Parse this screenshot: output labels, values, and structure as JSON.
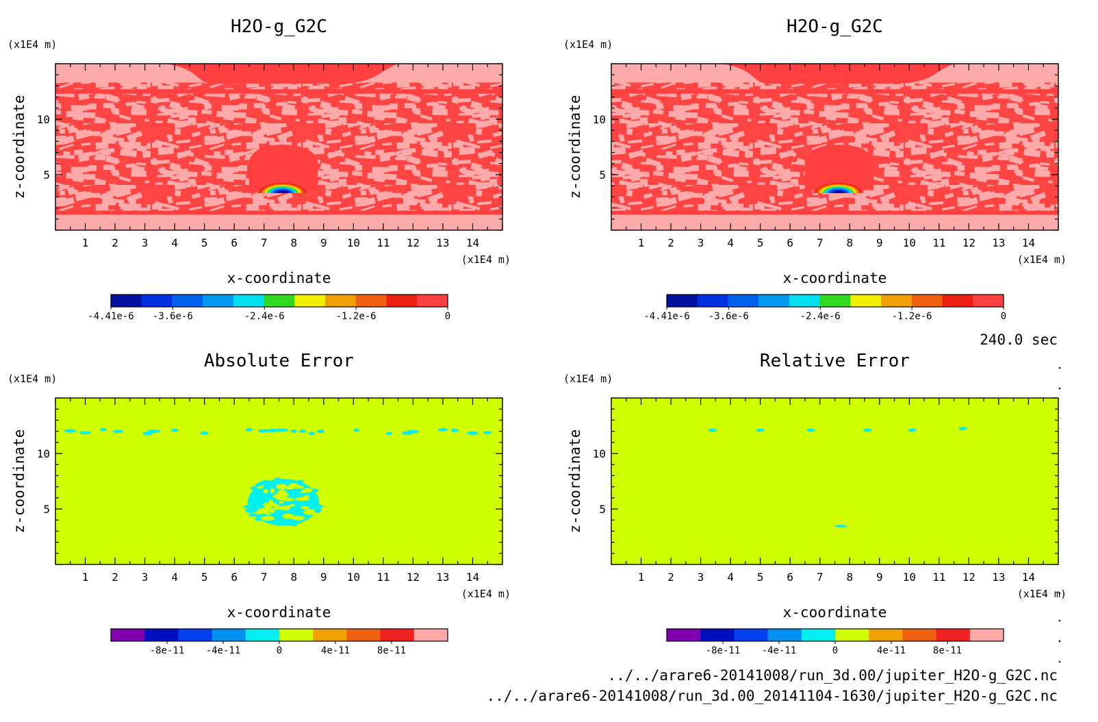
{
  "figure": {
    "time_label": "240.0 sec",
    "footer_lines": [
      "../../arare6-20141008/run_3d.00/jupiter_H2O-g_G2C.nc",
      "../../arare6-20141008/run_3d.00_20141104-1630/jupiter_H2O-g_G2C.nc"
    ]
  },
  "chart_data": [
    {
      "type": "heatmap",
      "title": "H2O-g_G2C",
      "xlabel": "x-coordinate",
      "ylabel": "z-coordinate",
      "x_unit": "(x1E4 m)",
      "y_unit": "(x1E4 m)",
      "xlim": [
        0,
        15
      ],
      "ylim": [
        0,
        15
      ],
      "xticks": [
        1,
        2,
        3,
        4,
        5,
        6,
        7,
        8,
        9,
        10,
        11,
        12,
        13,
        14
      ],
      "yticks": [
        5,
        10
      ],
      "colorbar": {
        "range": [
          -4.41e-06,
          0
        ],
        "colors": [
          "#0010a0",
          "#0030e0",
          "#0060f0",
          "#0098f0",
          "#00e0f0",
          "#30d820",
          "#f0f000",
          "#f0a000",
          "#f06010",
          "#f02010",
          "#ff4040"
        ],
        "tick_values": [
          -4.41e-06,
          -3.6e-06,
          -2.4e-06,
          -1.2e-06,
          0
        ],
        "tick_labels": [
          "-4.41e-6",
          "-3.6e-6",
          "-2.4e-6",
          "-1.2e-6",
          "0"
        ]
      },
      "field": "h2o"
    },
    {
      "type": "heatmap",
      "title": "H2O-g_G2C",
      "xlabel": "x-coordinate",
      "ylabel": "z-coordinate",
      "x_unit": "(x1E4 m)",
      "y_unit": "(x1E4 m)",
      "xlim": [
        0,
        15
      ],
      "ylim": [
        0,
        15
      ],
      "xticks": [
        1,
        2,
        3,
        4,
        5,
        6,
        7,
        8,
        9,
        10,
        11,
        12,
        13,
        14
      ],
      "yticks": [
        5,
        10
      ],
      "colorbar": {
        "range": [
          -4.41e-06,
          0
        ],
        "colors": [
          "#0010a0",
          "#0030e0",
          "#0060f0",
          "#0098f0",
          "#00e0f0",
          "#30d820",
          "#f0f000",
          "#f0a000",
          "#f06010",
          "#f02010",
          "#ff4040"
        ],
        "tick_values": [
          -4.41e-06,
          -3.6e-06,
          -2.4e-06,
          -1.2e-06,
          0
        ],
        "tick_labels": [
          "-4.41e-6",
          "-3.6e-6",
          "-2.4e-6",
          "-1.2e-6",
          "0"
        ]
      },
      "field": "h2o"
    },
    {
      "type": "heatmap",
      "title": "Absolute Error",
      "xlabel": "x-coordinate",
      "ylabel": "z-coordinate",
      "x_unit": "(x1E4 m)",
      "y_unit": "(x1E4 m)",
      "xlim": [
        0,
        15
      ],
      "ylim": [
        0,
        15
      ],
      "xticks": [
        1,
        2,
        3,
        4,
        5,
        6,
        7,
        8,
        9,
        10,
        11,
        12,
        13,
        14
      ],
      "yticks": [
        5,
        10
      ],
      "colorbar": {
        "range": [
          -1.2e-10,
          1.2e-10
        ],
        "colors": [
          "#8000b0",
          "#0010c0",
          "#0040f0",
          "#0090f0",
          "#00f0f0",
          "#d0ff00",
          "#f0a000",
          "#f06010",
          "#f02020",
          "#ffa8a8"
        ],
        "tick_values": [
          -8e-11,
          -4e-11,
          0,
          4e-11,
          8e-11
        ],
        "tick_labels": [
          "-8e-11",
          "-4e-11",
          "0",
          "4e-11",
          "8e-11"
        ]
      },
      "field": "abs"
    },
    {
      "type": "heatmap",
      "title": "Relative Error",
      "xlabel": "x-coordinate",
      "ylabel": "z-coordinate",
      "x_unit": "(x1E4 m)",
      "y_unit": "(x1E4 m)",
      "xlim": [
        0,
        15
      ],
      "ylim": [
        0,
        15
      ],
      "xticks": [
        1,
        2,
        3,
        4,
        5,
        6,
        7,
        8,
        9,
        10,
        11,
        12,
        13,
        14
      ],
      "yticks": [
        5,
        10
      ],
      "colorbar": {
        "range": [
          -1.2e-10,
          1.2e-10
        ],
        "colors": [
          "#8000b0",
          "#0010c0",
          "#0040f0",
          "#0090f0",
          "#00f0f0",
          "#d0ff00",
          "#f0a000",
          "#f06010",
          "#f02020",
          "#ffa8a8"
        ],
        "tick_values": [
          -8e-11,
          -4e-11,
          0,
          4e-11,
          8e-11
        ],
        "tick_labels": [
          "-8e-11",
          "-4e-11",
          "0",
          "4e-11",
          "8e-11"
        ]
      },
      "field": "rel"
    }
  ]
}
